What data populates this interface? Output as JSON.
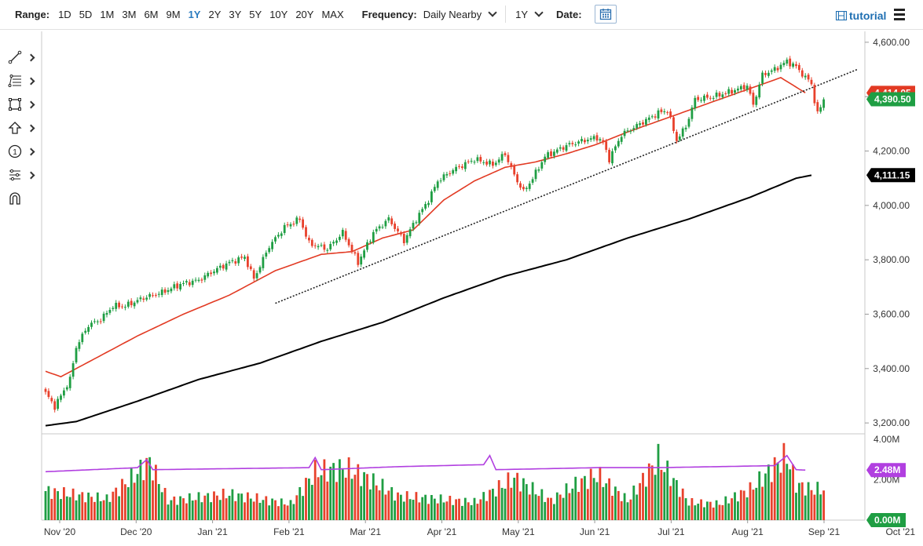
{
  "toolbar": {
    "range_label": "Range:",
    "ranges": [
      "1D",
      "5D",
      "1M",
      "3M",
      "6M",
      "9M",
      "1Y",
      "2Y",
      "3Y",
      "5Y",
      "10Y",
      "20Y",
      "MAX"
    ],
    "active_range": "1Y",
    "frequency_label": "Frequency:",
    "frequency_value": "Daily Nearby",
    "period_value": "1Y",
    "date_label": "Date:",
    "tutorial_label": "tutorial"
  },
  "colors": {
    "up": "#1f9e43",
    "down": "#e8412c",
    "ma_fast": "#e23a23",
    "ma_slow": "#000000",
    "volume_avg": "#b13fe0",
    "accent": "#2a7bbf"
  },
  "drawing_tools": [
    "line-tool",
    "fibonacci-tool",
    "rectangle-tool",
    "arrow-tool",
    "annotation-tool",
    "measure-tool",
    "magnet-tool"
  ],
  "chart_data": {
    "type": "candlestick",
    "x_ticks": [
      "Nov '20",
      "Dec '20",
      "Jan '21",
      "Feb '21",
      "Mar '21",
      "Apr '21",
      "May '21",
      "Jun '21",
      "Jul '21",
      "Aug '21",
      "Sep '21",
      "Oct '21"
    ],
    "price_axis": {
      "ticks": [
        "3,200.00",
        "3,400.00",
        "3,600.00",
        "3,800.00",
        "4,000.00",
        "4,200.00",
        "4,400.00",
        "4,600.00"
      ],
      "ylim": [
        3160,
        4640
      ]
    },
    "last_price": "4,390.50",
    "ma_slow_value": "4,111.15",
    "ma_fast_value": "4,414.05",
    "volume_axis": {
      "ticks": [
        "4.00M",
        "2.00M",
        "0.00M"
      ],
      "ylim": [
        0,
        4.2
      ]
    },
    "volume_avg_value": "2.48M",
    "volume_zero_label": "0.00M",
    "close_anchors": [
      [
        0,
        3310
      ],
      [
        3,
        3260
      ],
      [
        8,
        3360
      ],
      [
        10,
        3480
      ],
      [
        14,
        3560
      ],
      [
        18,
        3580
      ],
      [
        22,
        3630
      ],
      [
        26,
        3630
      ],
      [
        32,
        3660
      ],
      [
        38,
        3680
      ],
      [
        44,
        3710
      ],
      [
        50,
        3725
      ],
      [
        55,
        3760
      ],
      [
        60,
        3790
      ],
      [
        65,
        3810
      ],
      [
        68,
        3730
      ],
      [
        73,
        3850
      ],
      [
        78,
        3920
      ],
      [
        83,
        3950
      ],
      [
        86,
        3860
      ],
      [
        92,
        3840
      ],
      [
        97,
        3900
      ],
      [
        102,
        3790
      ],
      [
        107,
        3900
      ],
      [
        112,
        3950
      ],
      [
        117,
        3870
      ],
      [
        121,
        3950
      ],
      [
        125,
        4020
      ],
      [
        128,
        4090
      ],
      [
        133,
        4130
      ],
      [
        140,
        4170
      ],
      [
        146,
        4150
      ],
      [
        150,
        4190
      ],
      [
        153,
        4110
      ],
      [
        156,
        4050
      ],
      [
        159,
        4100
      ],
      [
        163,
        4180
      ],
      [
        170,
        4220
      ],
      [
        176,
        4240
      ],
      [
        180,
        4250
      ],
      [
        182,
        4230
      ],
      [
        184,
        4170
      ],
      [
        188,
        4260
      ],
      [
        194,
        4300
      ],
      [
        200,
        4340
      ],
      [
        203,
        4350
      ],
      [
        206,
        4240
      ],
      [
        209,
        4290
      ],
      [
        212,
        4390
      ],
      [
        218,
        4400
      ],
      [
        224,
        4420
      ],
      [
        229,
        4440
      ],
      [
        231,
        4370
      ],
      [
        234,
        4480
      ],
      [
        238,
        4500
      ],
      [
        242,
        4530
      ],
      [
        245,
        4510
      ],
      [
        248,
        4470
      ],
      [
        250,
        4450
      ],
      [
        251,
        4380
      ],
      [
        252,
        4340
      ],
      [
        253,
        4358
      ],
      [
        254,
        4390
      ]
    ],
    "ma_fast_anchors": [
      [
        0,
        3390
      ],
      [
        5,
        3370
      ],
      [
        15,
        3430
      ],
      [
        30,
        3520
      ],
      [
        45,
        3600
      ],
      [
        60,
        3670
      ],
      [
        75,
        3760
      ],
      [
        90,
        3820
      ],
      [
        100,
        3830
      ],
      [
        110,
        3880
      ],
      [
        120,
        3910
      ],
      [
        130,
        4020
      ],
      [
        140,
        4090
      ],
      [
        150,
        4140
      ],
      [
        160,
        4160
      ],
      [
        170,
        4190
      ],
      [
        180,
        4225
      ],
      [
        190,
        4270
      ],
      [
        200,
        4310
      ],
      [
        210,
        4350
      ],
      [
        220,
        4390
      ],
      [
        230,
        4430
      ],
      [
        240,
        4470
      ],
      [
        248,
        4414
      ]
    ],
    "ma_slow_anchors": [
      [
        0,
        3190
      ],
      [
        10,
        3205
      ],
      [
        30,
        3280
      ],
      [
        50,
        3360
      ],
      [
        70,
        3420
      ],
      [
        90,
        3500
      ],
      [
        110,
        3570
      ],
      [
        130,
        3660
      ],
      [
        150,
        3740
      ],
      [
        170,
        3800
      ],
      [
        190,
        3880
      ],
      [
        210,
        3950
      ],
      [
        230,
        4030
      ],
      [
        245,
        4100
      ],
      [
        250,
        4111
      ]
    ],
    "trendline": [
      [
        75,
        3640
      ],
      [
        265,
        4500
      ]
    ],
    "volume_anchors": [
      [
        0,
        1.8
      ],
      [
        20,
        1.3
      ],
      [
        34,
        3.6
      ],
      [
        40,
        1.2
      ],
      [
        60,
        1.6
      ],
      [
        80,
        1.0
      ],
      [
        88,
        3.0
      ],
      [
        98,
        3.2
      ],
      [
        105,
        2.6
      ],
      [
        115,
        1.5
      ],
      [
        140,
        1.1
      ],
      [
        153,
        2.6
      ],
      [
        165,
        1.2
      ],
      [
        173,
        2.2
      ],
      [
        180,
        2.8
      ],
      [
        190,
        1.2
      ],
      [
        200,
        3.8
      ],
      [
        210,
        1.1
      ],
      [
        220,
        1.0
      ],
      [
        230,
        1.9
      ],
      [
        239,
        3.5
      ],
      [
        242,
        4.0
      ],
      [
        245,
        2.2
      ],
      [
        250,
        1.9
      ]
    ],
    "volume_avg_anchors": [
      [
        0,
        2.4
      ],
      [
        30,
        2.6
      ],
      [
        33,
        3.0
      ],
      [
        35,
        2.5
      ],
      [
        60,
        2.55
      ],
      [
        86,
        2.6
      ],
      [
        88,
        3.1
      ],
      [
        90,
        2.5
      ],
      [
        115,
        2.65
      ],
      [
        143,
        2.75
      ],
      [
        145,
        3.2
      ],
      [
        147,
        2.5
      ],
      [
        180,
        2.6
      ],
      [
        200,
        2.6
      ],
      [
        238,
        2.7
      ],
      [
        242,
        3.2
      ],
      [
        245,
        2.5
      ],
      [
        248,
        2.48
      ]
    ]
  }
}
